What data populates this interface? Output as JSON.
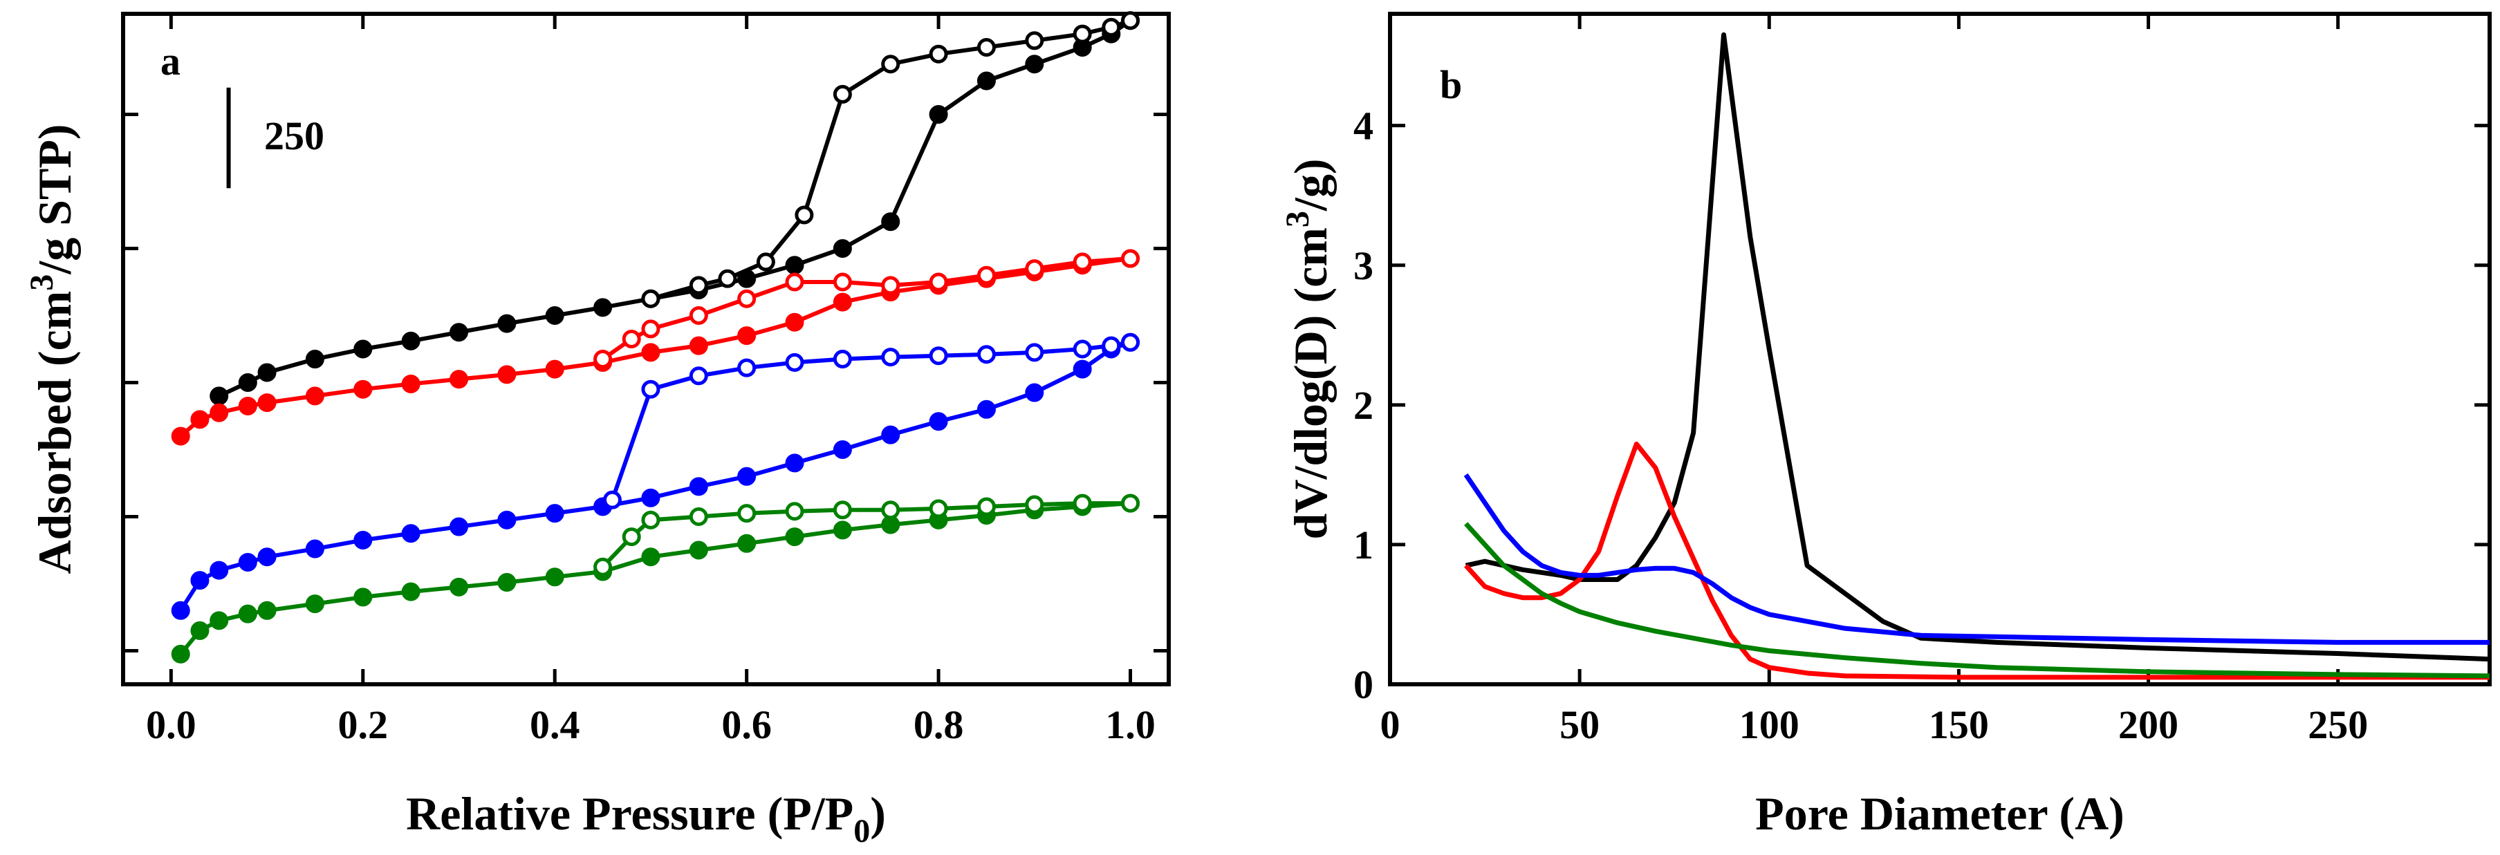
{
  "chart_data": [
    {
      "panel": "a",
      "type": "line",
      "title": "",
      "xlabel": "Relative Pressure (P/P",
      "xlabel_sub": "0",
      "xlabel_end": ")",
      "ylabel": "Adsorbed (cm",
      "ylabel_sup": "3",
      "ylabel_end": "/g STP)",
      "xlim": [
        -0.05,
        1.04
      ],
      "ylim": [
        0,
        10
      ],
      "x_ticks": [
        0.0,
        0.2,
        0.4,
        0.6,
        0.8,
        1.0
      ],
      "x_tick_labels": [
        "0.0",
        "0.2",
        "0.4",
        "0.6",
        "0.8",
        "1.0"
      ],
      "y_ticks_unlabeled": [
        0.5,
        2.5,
        4.5,
        6.5,
        8.5
      ],
      "scale_bar": {
        "label": "250",
        "from": 7.4,
        "to": 8.9
      },
      "series": [
        {
          "name": "black",
          "color": "#000000",
          "adsorption": {
            "x": [
              0.05,
              0.08,
              0.1,
              0.15,
              0.2,
              0.25,
              0.3,
              0.35,
              0.4,
              0.45,
              0.5,
              0.55,
              0.6,
              0.65,
              0.7,
              0.75,
              0.8,
              0.85,
              0.9,
              0.95,
              0.98,
              1.0
            ],
            "y": [
              4.3,
              4.5,
              4.65,
              4.85,
              5.0,
              5.12,
              5.25,
              5.38,
              5.5,
              5.62,
              5.75,
              5.88,
              6.05,
              6.25,
              6.5,
              6.9,
              8.5,
              9.0,
              9.25,
              9.5,
              9.7,
              9.9
            ]
          },
          "desorption": {
            "x": [
              1.0,
              0.98,
              0.95,
              0.9,
              0.85,
              0.8,
              0.75,
              0.7,
              0.66,
              0.62,
              0.58,
              0.55,
              0.5
            ],
            "y": [
              9.9,
              9.8,
              9.7,
              9.6,
              9.5,
              9.4,
              9.25,
              8.8,
              7.0,
              6.3,
              6.05,
              5.95,
              5.75
            ]
          }
        },
        {
          "name": "red",
          "color": "#ff0000",
          "adsorption": {
            "x": [
              0.01,
              0.03,
              0.05,
              0.08,
              0.1,
              0.15,
              0.2,
              0.25,
              0.3,
              0.35,
              0.4,
              0.45,
              0.5,
              0.55,
              0.6,
              0.65,
              0.7,
              0.75,
              0.8,
              0.85,
              0.9,
              0.95,
              1.0
            ],
            "y": [
              3.7,
              3.95,
              4.05,
              4.15,
              4.2,
              4.3,
              4.4,
              4.48,
              4.55,
              4.62,
              4.7,
              4.8,
              4.95,
              5.05,
              5.2,
              5.4,
              5.7,
              5.85,
              5.95,
              6.05,
              6.15,
              6.25,
              6.35
            ]
          },
          "desorption": {
            "x": [
              1.0,
              0.95,
              0.9,
              0.85,
              0.8,
              0.75,
              0.7,
              0.65,
              0.6,
              0.55,
              0.5,
              0.48,
              0.45
            ],
            "y": [
              6.35,
              6.3,
              6.2,
              6.1,
              6.0,
              5.95,
              6.0,
              6.0,
              5.75,
              5.5,
              5.3,
              5.15,
              4.85
            ]
          }
        },
        {
          "name": "blue",
          "color": "#0000ff",
          "adsorption": {
            "x": [
              0.01,
              0.03,
              0.05,
              0.08,
              0.1,
              0.15,
              0.2,
              0.25,
              0.3,
              0.35,
              0.4,
              0.45,
              0.5,
              0.55,
              0.6,
              0.65,
              0.7,
              0.75,
              0.8,
              0.85,
              0.9,
              0.95,
              0.98,
              1.0
            ],
            "y": [
              1.1,
              1.55,
              1.7,
              1.82,
              1.9,
              2.02,
              2.15,
              2.25,
              2.35,
              2.45,
              2.55,
              2.65,
              2.78,
              2.95,
              3.1,
              3.3,
              3.5,
              3.72,
              3.92,
              4.1,
              4.35,
              4.7,
              5.0,
              5.1
            ]
          },
          "desorption": {
            "x": [
              1.0,
              0.98,
              0.95,
              0.9,
              0.85,
              0.8,
              0.75,
              0.7,
              0.65,
              0.6,
              0.55,
              0.5,
              0.46
            ],
            "y": [
              5.1,
              5.05,
              5.0,
              4.95,
              4.92,
              4.9,
              4.88,
              4.85,
              4.8,
              4.72,
              4.6,
              4.4,
              2.75
            ]
          }
        },
        {
          "name": "green",
          "color": "#008000",
          "adsorption": {
            "x": [
              0.01,
              0.03,
              0.05,
              0.08,
              0.1,
              0.15,
              0.2,
              0.25,
              0.3,
              0.35,
              0.4,
              0.45,
              0.5,
              0.55,
              0.6,
              0.65,
              0.7,
              0.75,
              0.8,
              0.85,
              0.9,
              0.95,
              1.0
            ],
            "y": [
              0.45,
              0.8,
              0.95,
              1.05,
              1.1,
              1.2,
              1.3,
              1.38,
              1.45,
              1.52,
              1.6,
              1.68,
              1.9,
              2.0,
              2.1,
              2.2,
              2.3,
              2.38,
              2.45,
              2.52,
              2.6,
              2.65,
              2.7
            ]
          },
          "desorption": {
            "x": [
              1.0,
              0.95,
              0.9,
              0.85,
              0.8,
              0.75,
              0.7,
              0.65,
              0.6,
              0.55,
              0.5,
              0.48,
              0.45
            ],
            "y": [
              2.7,
              2.7,
              2.68,
              2.65,
              2.62,
              2.6,
              2.6,
              2.58,
              2.55,
              2.5,
              2.45,
              2.2,
              1.75
            ]
          }
        }
      ]
    },
    {
      "panel": "b",
      "type": "line",
      "title": "",
      "xlabel": "Pore Diameter (A)",
      "ylabel": "dV/dlog(D) (cm",
      "ylabel_sup": "3",
      "ylabel_end": "/g)",
      "xlim": [
        0,
        290
      ],
      "ylim": [
        0,
        4.8
      ],
      "x_ticks": [
        0,
        50,
        100,
        150,
        200,
        250
      ],
      "x_tick_labels": [
        "0",
        "50",
        "100",
        "150",
        "200",
        "250"
      ],
      "y_ticks": [
        0,
        1,
        2,
        3,
        4
      ],
      "y_tick_labels": [
        "0",
        "1",
        "2",
        "3",
        "4"
      ],
      "series": [
        {
          "name": "black",
          "color": "#000000",
          "x": [
            20,
            25,
            30,
            35,
            40,
            45,
            50,
            55,
            60,
            65,
            70,
            75,
            80,
            88,
            95,
            100,
            110,
            120,
            130,
            140,
            160,
            200,
            250,
            290
          ],
          "y": [
            0.85,
            0.88,
            0.85,
            0.82,
            0.8,
            0.78,
            0.75,
            0.75,
            0.75,
            0.85,
            1.05,
            1.3,
            1.8,
            4.65,
            3.2,
            2.4,
            0.85,
            0.65,
            0.45,
            0.33,
            0.3,
            0.26,
            0.22,
            0.18
          ]
        },
        {
          "name": "red",
          "color": "#ff0000",
          "x": [
            20,
            25,
            30,
            35,
            40,
            45,
            50,
            55,
            60,
            65,
            70,
            75,
            80,
            85,
            90,
            95,
            100,
            110,
            120,
            150,
            200,
            250,
            290
          ],
          "y": [
            0.85,
            0.7,
            0.65,
            0.62,
            0.62,
            0.65,
            0.75,
            0.95,
            1.35,
            1.72,
            1.55,
            1.2,
            0.9,
            0.6,
            0.35,
            0.18,
            0.12,
            0.08,
            0.06,
            0.05,
            0.05,
            0.05,
            0.05
          ]
        },
        {
          "name": "blue",
          "color": "#0000ff",
          "x": [
            20,
            25,
            30,
            35,
            40,
            45,
            50,
            55,
            60,
            65,
            70,
            75,
            80,
            85,
            90,
            95,
            100,
            110,
            120,
            140,
            160,
            200,
            250,
            290
          ],
          "y": [
            1.5,
            1.3,
            1.1,
            0.95,
            0.85,
            0.8,
            0.78,
            0.78,
            0.8,
            0.82,
            0.83,
            0.83,
            0.8,
            0.72,
            0.62,
            0.55,
            0.5,
            0.45,
            0.4,
            0.35,
            0.34,
            0.32,
            0.3,
            0.3
          ]
        },
        {
          "name": "green",
          "color": "#008000",
          "x": [
            20,
            25,
            30,
            35,
            40,
            45,
            50,
            60,
            70,
            80,
            90,
            100,
            120,
            140,
            160,
            200,
            250,
            290
          ],
          "y": [
            1.15,
            1.0,
            0.85,
            0.75,
            0.65,
            0.58,
            0.52,
            0.44,
            0.38,
            0.33,
            0.28,
            0.24,
            0.19,
            0.15,
            0.12,
            0.09,
            0.07,
            0.06
          ]
        }
      ]
    }
  ],
  "panel_labels": {
    "a": "a",
    "b": "b"
  }
}
